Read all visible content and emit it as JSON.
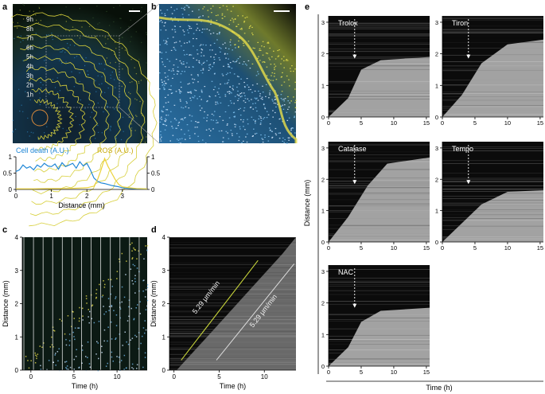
{
  "panels": {
    "a": {
      "letter": "a",
      "hour_labels": [
        "9h",
        "8h",
        "7h",
        "6h",
        "5h",
        "4h",
        "3h",
        "2h",
        "1h"
      ],
      "legend_left": "Cell death (A.U.)",
      "legend_right": "ROS (A.U.)",
      "colors": {
        "cell_death": "#1e86d6",
        "ros": "#ecd23a"
      }
    },
    "b": {
      "letter": "b"
    },
    "c": {
      "letter": "c"
    },
    "d": {
      "letter": "d",
      "annotation_1": "5.29 μm/min",
      "annotation_2": "5.29 μm/min"
    },
    "e": {
      "letter": "e",
      "ylabel": "Distance (mm)",
      "xlabel": "Time (h)",
      "kymographs": [
        {
          "title": "Trolox"
        },
        {
          "title": "Tiron"
        },
        {
          "title": "Catalase"
        },
        {
          "title": "Tempo"
        },
        {
          "title": "NAC"
        }
      ]
    }
  },
  "chart_data": [
    {
      "type": "line",
      "panel": "a",
      "xlabel": "Distance (mm)",
      "xlim": [
        0,
        3.7
      ],
      "xticks": [
        0,
        1,
        2,
        3
      ],
      "y_left_ticks": [
        0,
        0.5,
        1
      ],
      "y_right_ticks": [
        0,
        0.5,
        1
      ],
      "series": [
        {
          "name": "Cell death (A.U.)",
          "x": [
            0,
            0.1,
            0.2,
            0.3,
            0.4,
            0.5,
            0.6,
            0.7,
            0.8,
            0.9,
            1.0,
            1.1,
            1.2,
            1.3,
            1.4,
            1.5,
            1.6,
            1.7,
            1.8,
            1.9,
            2.0,
            2.1,
            2.2,
            2.3,
            2.4,
            2.5,
            2.6,
            2.7,
            2.8,
            2.9,
            3.0,
            3.2,
            3.4,
            3.7
          ],
          "values": [
            0.55,
            0.6,
            0.75,
            0.65,
            0.7,
            0.6,
            0.75,
            0.68,
            0.8,
            0.72,
            0.7,
            0.78,
            0.62,
            0.82,
            0.7,
            0.75,
            0.8,
            0.65,
            0.85,
            0.72,
            0.8,
            0.6,
            0.35,
            0.25,
            0.2,
            0.18,
            0.15,
            0.12,
            0.1,
            0.08,
            0.05,
            0.03,
            0.02,
            0.02
          ]
        },
        {
          "name": "ROS (A.U.)",
          "x": [
            0,
            0.5,
            1.0,
            1.5,
            2.0,
            2.2,
            2.3,
            2.4,
            2.5,
            2.6,
            2.7,
            2.8,
            2.9,
            3.0,
            3.2,
            3.4,
            3.7
          ],
          "values": [
            0.02,
            0.02,
            0.03,
            0.03,
            0.05,
            0.1,
            0.3,
            0.6,
            0.95,
            0.7,
            0.5,
            0.3,
            0.15,
            0.08,
            0.05,
            0.03,
            0.02
          ]
        }
      ]
    },
    {
      "type": "heatmap",
      "panel": "c",
      "xlabel": "Time (h)",
      "ylabel": "Distance (mm)",
      "xticks": [
        0,
        5,
        10
      ],
      "yticks": [
        0,
        1,
        2,
        3,
        4
      ],
      "xlim": [
        -1,
        13.5
      ],
      "ylim": [
        0,
        4
      ]
    },
    {
      "type": "heatmap",
      "panel": "d",
      "xlabel": "Time (h)",
      "ylabel": "Distance (mm)",
      "xticks": [
        0,
        5,
        10
      ],
      "yticks": [
        0,
        1,
        2,
        3,
        4
      ],
      "xlim": [
        -0.5,
        13.5
      ],
      "ylim": [
        0,
        4
      ]
    },
    {
      "type": "heatmap",
      "panel": "e",
      "xticks": [
        0,
        5,
        10,
        15
      ],
      "yticks": [
        0,
        1,
        2,
        3
      ],
      "xlim": [
        0,
        15.5
      ],
      "ylim": [
        0,
        3.2
      ],
      "arrow_time_h": 4
    }
  ]
}
